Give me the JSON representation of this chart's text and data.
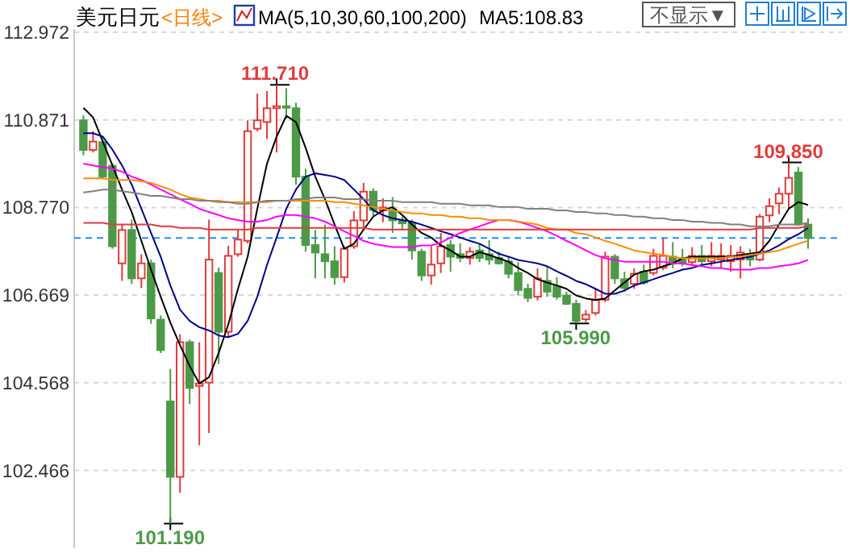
{
  "chart_data": {
    "type": "candlestick",
    "title": "美元日元",
    "subtitle": "<日线>",
    "annotations": [
      "MA(5,10,30,60,100,200)",
      "MA5:108.83",
      "不显示▼",
      {
        "text": "111.710",
        "y": 111.71
      },
      {
        "text": "101.190",
        "y": 101.19
      },
      {
        "text": "105.990",
        "y": 105.99
      },
      {
        "text": "109.850",
        "y": 109.85
      }
    ],
    "categories": [
      null,
      null,
      null,
      null,
      null,
      null,
      null,
      null,
      null,
      null,
      null,
      null,
      null,
      null,
      null,
      null,
      null,
      null,
      null,
      null,
      null,
      null,
      null,
      null,
      null,
      null,
      null,
      null,
      null,
      null,
      null,
      null,
      null,
      null,
      null,
      null,
      null,
      null,
      null,
      null,
      null,
      null,
      null,
      null,
      null,
      null,
      null,
      null,
      null,
      null,
      null,
      null,
      null,
      null,
      null,
      null,
      null,
      null,
      null,
      null,
      null,
      null,
      null,
      null,
      null,
      null,
      null,
      null,
      null,
      null,
      null,
      null,
      null,
      null,
      null,
      null
    ],
    "ohlc": [
      [
        110.86,
        110.98,
        110.02,
        110.15
      ],
      [
        110.15,
        110.6,
        110.09,
        110.35
      ],
      [
        110.34,
        110.41,
        109.45,
        109.51
      ],
      [
        109.77,
        109.83,
        107.78,
        107.84
      ],
      [
        107.43,
        108.36,
        107.01,
        108.23
      ],
      [
        108.23,
        108.48,
        106.94,
        107.07
      ],
      [
        107.07,
        107.65,
        106.84,
        107.43
      ],
      [
        107.43,
        107.52,
        105.98,
        106.11
      ],
      [
        106.08,
        106.18,
        105.28,
        105.35
      ],
      [
        104.12,
        104.9,
        101.19,
        102.31
      ],
      [
        102.31,
        105.73,
        101.93,
        105.54
      ],
      [
        105.54,
        105.6,
        104.06,
        104.44
      ],
      [
        104.49,
        105.54,
        103.07,
        104.55
      ],
      [
        104.57,
        108.48,
        103.36,
        107.52
      ],
      [
        107.2,
        107.33,
        105.02,
        105.79
      ],
      [
        105.79,
        107.85,
        105.66,
        107.61
      ],
      [
        107.65,
        108.23,
        107.59,
        108.0
      ],
      [
        107.97,
        110.86,
        107.91,
        110.6
      ],
      [
        110.66,
        111.5,
        110.6,
        110.86
      ],
      [
        110.82,
        111.56,
        110.41,
        111.15
      ],
      [
        111.15,
        111.71,
        110.09,
        111.2
      ],
      [
        111.2,
        111.63,
        110.9,
        111.17
      ],
      [
        111.15,
        111.28,
        109.32,
        109.51
      ],
      [
        109.51,
        109.7,
        107.71,
        107.87
      ],
      [
        107.87,
        108.23,
        107.07,
        107.69
      ],
      [
        107.65,
        108.36,
        107.07,
        107.48
      ],
      [
        107.48,
        107.84,
        106.92,
        107.1
      ],
      [
        107.1,
        107.84,
        106.97,
        107.78
      ],
      [
        107.84,
        108.68,
        107.78,
        108.46
      ],
      [
        108.46,
        109.36,
        108.29,
        109.15
      ],
      [
        109.15,
        109.23,
        108.55,
        108.71
      ],
      [
        108.7,
        108.99,
        108.42,
        108.77
      ],
      [
        108.71,
        109.02,
        108.16,
        108.46
      ],
      [
        108.45,
        108.55,
        108.23,
        108.39
      ],
      [
        108.39,
        108.48,
        107.52,
        107.74
      ],
      [
        107.71,
        107.78,
        107.01,
        107.14
      ],
      [
        107.14,
        107.84,
        106.92,
        107.4
      ],
      [
        107.43,
        108.16,
        107.2,
        107.84
      ],
      [
        107.87,
        107.99,
        107.23,
        107.59
      ],
      [
        107.65,
        107.91,
        107.46,
        107.56
      ],
      [
        107.56,
        107.82,
        107.4,
        107.71
      ],
      [
        107.74,
        107.91,
        107.46,
        107.56
      ],
      [
        107.65,
        107.99,
        107.4,
        107.52
      ],
      [
        107.56,
        107.71,
        107.4,
        107.43
      ],
      [
        107.48,
        107.59,
        107.07,
        107.18
      ],
      [
        107.2,
        107.46,
        106.66,
        106.79
      ],
      [
        106.82,
        106.94,
        106.5,
        106.6
      ],
      [
        106.63,
        107.31,
        106.54,
        107.07
      ],
      [
        107.01,
        107.36,
        106.63,
        106.75
      ],
      [
        106.88,
        107.1,
        106.56,
        106.63
      ],
      [
        106.66,
        106.75,
        106.43,
        106.46
      ],
      [
        106.46,
        106.56,
        105.99,
        106.05
      ],
      [
        106.09,
        106.31,
        106.02,
        106.2
      ],
      [
        106.24,
        106.82,
        106.18,
        106.56
      ],
      [
        106.56,
        107.71,
        106.5,
        107.59
      ],
      [
        107.59,
        107.65,
        106.94,
        107.07
      ],
      [
        107.05,
        107.23,
        106.75,
        106.84
      ],
      [
        106.94,
        107.31,
        106.82,
        107.18
      ],
      [
        107.23,
        107.4,
        106.92,
        106.97
      ],
      [
        107.2,
        107.78,
        107.14,
        107.61
      ],
      [
        107.33,
        108.04,
        107.27,
        107.61
      ],
      [
        107.59,
        107.94,
        107.31,
        107.43
      ],
      [
        107.52,
        107.78,
        107.36,
        107.43
      ],
      [
        107.46,
        107.82,
        107.36,
        107.61
      ],
      [
        107.61,
        107.87,
        107.4,
        107.48
      ],
      [
        107.48,
        107.94,
        107.36,
        107.61
      ],
      [
        107.52,
        107.91,
        107.33,
        107.61
      ],
      [
        107.48,
        107.87,
        107.23,
        107.61
      ],
      [
        107.52,
        107.84,
        107.07,
        107.69
      ],
      [
        107.65,
        107.78,
        107.36,
        107.52
      ],
      [
        107.52,
        108.61,
        107.48,
        108.55
      ],
      [
        108.58,
        108.99,
        108.42,
        108.8
      ],
      [
        108.87,
        109.25,
        108.61,
        109.1
      ],
      [
        109.1,
        109.85,
        108.74,
        109.48
      ],
      [
        109.61,
        109.74,
        108.33,
        108.36
      ],
      [
        108.36,
        108.51,
        107.78,
        108.04
      ]
    ],
    "colors": [
      "#4c9a48",
      "#e03c3c",
      "#4c9a48",
      "#4c9a48",
      "#e03c3c",
      "#4c9a48",
      "#e03c3c",
      "#4c9a48",
      "#4c9a48",
      "#4c9a48",
      "#e03c3c",
      "#4c9a48",
      "#e03c3c",
      "#e03c3c",
      "#4c9a48",
      "#e03c3c",
      "#e03c3c",
      "#e03c3c",
      "#e03c3c",
      "#e03c3c",
      "#e03c3c",
      "#4c9a48",
      "#4c9a48",
      "#4c9a48",
      "#4c9a48",
      "#4c9a48",
      "#4c9a48",
      "#e03c3c",
      "#e03c3c",
      "#e03c3c",
      "#4c9a48",
      "#e03c3c",
      "#4c9a48",
      "#4c9a48",
      "#4c9a48",
      "#4c9a48",
      "#e03c3c",
      "#e03c3c",
      "#4c9a48",
      "#4c9a48",
      "#e03c3c",
      "#4c9a48",
      "#4c9a48",
      "#4c9a48",
      "#4c9a48",
      "#4c9a48",
      "#4c9a48",
      "#e03c3c",
      "#4c9a48",
      "#4c9a48",
      "#4c9a48",
      "#4c9a48",
      "#e03c3c",
      "#e03c3c",
      "#e03c3c",
      "#4c9a48",
      "#4c9a48",
      "#e03c3c",
      "#4c9a48",
      "#e03c3c",
      "#e03c3c",
      "#4c9a48",
      "#4c9a48",
      "#e03c3c",
      "#4c9a48",
      "#e03c3c",
      "#e03c3c",
      "#e03c3c",
      "#e03c3c",
      "#4c9a48",
      "#e03c3c",
      "#e03c3c",
      "#e03c3c",
      "#e03c3c",
      "#4c9a48",
      "#4c9a48"
    ],
    "series": [
      {
        "type": "line",
        "color": "#000000",
        "values": [
          111.16,
          110.93,
          110.36,
          109.78,
          109.2,
          108.66,
          107.97,
          107.28,
          106.63,
          106.01,
          105.47,
          104.97,
          104.55,
          104.7,
          105.28,
          105.97,
          106.82,
          107.59,
          108.74,
          109.82,
          110.47,
          110.97,
          110.82,
          110.2,
          109.51,
          108.97,
          108.36,
          107.78,
          107.9,
          108.24,
          108.55,
          108.7,
          108.78,
          108.59,
          108.36,
          108.16,
          108.05,
          107.86,
          107.74,
          107.59,
          107.59,
          107.7,
          107.63,
          107.55,
          107.47,
          107.32,
          107.2,
          107.05,
          106.97,
          106.9,
          106.82,
          106.66,
          106.59,
          106.55,
          106.59,
          106.78,
          106.97,
          107.16,
          107.24,
          107.28,
          107.36,
          107.43,
          107.55,
          107.59,
          107.59,
          107.59,
          107.59,
          107.59,
          107.63,
          107.66,
          107.7,
          107.97,
          108.36,
          108.74,
          108.9,
          108.83
        ]
      },
      {
        "type": "line",
        "color": "#00008b",
        "values": [
          110.55,
          110.55,
          110.47,
          110.16,
          109.78,
          109.32,
          108.74,
          108.16,
          107.59,
          106.9,
          106.32,
          106.05,
          105.9,
          105.82,
          105.7,
          105.66,
          105.74,
          106.05,
          106.63,
          107.39,
          108.05,
          108.74,
          109.2,
          109.51,
          109.59,
          109.55,
          109.51,
          109.43,
          109.2,
          108.97,
          108.7,
          108.59,
          108.51,
          108.47,
          108.43,
          108.36,
          108.28,
          108.2,
          108.13,
          108.05,
          107.97,
          107.9,
          107.78,
          107.66,
          107.59,
          107.51,
          107.47,
          107.43,
          107.36,
          107.24,
          107.13,
          107.01,
          106.93,
          106.82,
          106.7,
          106.7,
          106.78,
          106.9,
          106.97,
          107.05,
          107.13,
          107.2,
          107.28,
          107.32,
          107.39,
          107.43,
          107.47,
          107.51,
          107.55,
          107.59,
          107.66,
          107.74,
          107.86,
          108.01,
          108.13,
          108.28
        ]
      },
      {
        "type": "line",
        "color": "#ff00ff",
        "values": [
          109.82,
          109.78,
          109.74,
          109.7,
          109.63,
          109.51,
          109.43,
          109.32,
          109.2,
          109.09,
          108.97,
          108.86,
          108.74,
          108.66,
          108.59,
          108.51,
          108.47,
          108.43,
          108.43,
          108.47,
          108.55,
          108.59,
          108.59,
          108.55,
          108.51,
          108.43,
          108.32,
          108.2,
          108.09,
          107.97,
          107.9,
          107.86,
          107.82,
          107.82,
          107.82,
          107.86,
          107.86,
          107.93,
          108.05,
          108.16,
          108.24,
          108.32,
          108.4,
          108.47,
          108.47,
          108.43,
          108.36,
          108.28,
          108.2,
          108.09,
          107.97,
          107.86,
          107.74,
          107.63,
          107.55,
          107.51,
          107.47,
          107.47,
          107.47,
          107.47,
          107.47,
          107.43,
          107.43,
          107.39,
          107.36,
          107.32,
          107.32,
          107.28,
          107.28,
          107.28,
          107.32,
          107.32,
          107.36,
          107.39,
          107.43,
          107.51
        ]
      },
      {
        "type": "line",
        "color": "#ff8c00",
        "values": [
          109.47,
          109.47,
          109.47,
          109.43,
          109.43,
          109.43,
          109.4,
          109.36,
          109.28,
          109.2,
          109.09,
          109.01,
          108.97,
          108.93,
          108.93,
          108.9,
          108.9,
          108.9,
          108.9,
          108.9,
          108.93,
          108.93,
          108.93,
          108.93,
          108.93,
          108.93,
          108.9,
          108.9,
          108.86,
          108.82,
          108.78,
          108.74,
          108.7,
          108.66,
          108.63,
          108.63,
          108.59,
          108.59,
          108.55,
          108.55,
          108.51,
          108.51,
          108.47,
          108.47,
          108.47,
          108.43,
          108.4,
          108.36,
          108.28,
          108.24,
          108.24,
          108.16,
          108.13,
          108.05,
          107.97,
          107.9,
          107.82,
          107.74,
          107.7,
          107.66,
          107.63,
          107.59,
          107.55,
          107.55,
          107.55,
          107.55,
          107.55,
          107.59,
          107.59,
          107.63,
          107.66,
          107.7,
          107.74,
          107.82,
          107.9,
          107.97
        ]
      },
      {
        "type": "line",
        "color": "#808080",
        "values": [
          109.13,
          109.16,
          109.2,
          109.2,
          109.16,
          109.13,
          109.09,
          109.05,
          109.05,
          109.01,
          108.97,
          108.97,
          108.93,
          108.93,
          108.9,
          108.9,
          108.86,
          108.86,
          108.9,
          108.93,
          108.93,
          108.93,
          108.97,
          108.97,
          109.01,
          109.01,
          109.01,
          108.97,
          108.97,
          108.97,
          108.93,
          108.93,
          108.93,
          108.9,
          108.9,
          108.9,
          108.9,
          108.86,
          108.86,
          108.86,
          108.82,
          108.82,
          108.82,
          108.78,
          108.78,
          108.78,
          108.74,
          108.74,
          108.74,
          108.7,
          108.7,
          108.66,
          108.66,
          108.63,
          108.63,
          108.59,
          108.59,
          108.55,
          108.55,
          108.51,
          108.51,
          108.47,
          108.47,
          108.43,
          108.43,
          108.4,
          108.4,
          108.36,
          108.36,
          108.32,
          108.32,
          108.32,
          108.36,
          108.36,
          108.36,
          108.4
        ]
      },
      {
        "type": "line",
        "color": "#e03c3c",
        "values": [
          108.4,
          108.4,
          108.4,
          108.36,
          108.36,
          108.36,
          108.36,
          108.36,
          108.32,
          108.32,
          108.28,
          108.28,
          108.28,
          108.24,
          108.24,
          108.24,
          108.24,
          108.24,
          108.28,
          108.28,
          108.28,
          108.28,
          108.28,
          108.28,
          108.28,
          108.28,
          108.28,
          108.28,
          108.28,
          108.28,
          108.24,
          108.24,
          108.24,
          108.24,
          108.24,
          108.24,
          108.24,
          108.24,
          108.24,
          108.24,
          108.24,
          108.24,
          108.24,
          108.24,
          108.24,
          108.24,
          108.24,
          108.24,
          108.24,
          108.24,
          108.24,
          108.24,
          108.24,
          108.24,
          108.24,
          108.24,
          108.24,
          108.24,
          108.24,
          108.24,
          108.24,
          108.24,
          108.24,
          108.24,
          108.24,
          108.24,
          108.24,
          108.24,
          108.24,
          108.24,
          108.28,
          108.28,
          108.28,
          108.28,
          108.28,
          108.32
        ]
      }
    ],
    "ylim": [
      100.6,
      113.05
    ],
    "yticks": [
      112.972,
      110.871,
      {
        "value": 108.77,
        "label": "108.770"
      },
      106.669,
      104.568,
      102.466
    ],
    "ref_lines": [
      {
        "axis": "y",
        "value": 108.04,
        "color": "#1e90ff",
        "line_style": "dashed"
      }
    ],
    "grid": "y",
    "tick_labels": "y"
  }
}
